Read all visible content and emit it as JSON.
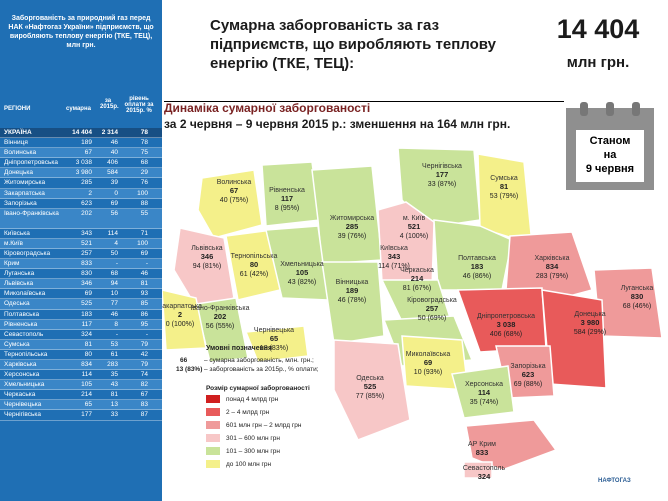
{
  "sidebar": {
    "title": "Заборгованість за природний газ перед НАК «Нафтогаз України» підприємств, що виробляють теплову енергію (ТКЕ, ТЕЦ), млн грн.",
    "headers": {
      "region": "РЕГІОНИ",
      "sum": "сумарна",
      "y2015": "за 2015р.",
      "pct": "рівень оплати за 2015р. %"
    },
    "total": {
      "name": "УКРАЇНА",
      "sum": "14 404",
      "y2015": "2 314",
      "pct": "78"
    },
    "rows": [
      {
        "name": "Вінниця",
        "sum": "189",
        "y2015": "46",
        "pct": "78"
      },
      {
        "name": "Волинська",
        "sum": "67",
        "y2015": "40",
        "pct": "75"
      },
      {
        "name": "Дніпропетровська",
        "sum": "3 038",
        "y2015": "406",
        "pct": "68"
      },
      {
        "name": "Донецька",
        "sum": "3 980",
        "y2015": "584",
        "pct": "29"
      },
      {
        "name": "Житомирська",
        "sum": "285",
        "y2015": "39",
        "pct": "76"
      },
      {
        "name": "Закарпатська",
        "sum": "2",
        "y2015": "0",
        "pct": "100"
      },
      {
        "name": "Запорізька",
        "sum": "623",
        "y2015": "69",
        "pct": "88"
      },
      {
        "name": "Івано-Франківська",
        "sum": "202",
        "y2015": "56",
        "pct": "55"
      },
      {
        "name": "Київська",
        "sum": "343",
        "y2015": "114",
        "pct": "71"
      },
      {
        "name": "м.Київ",
        "sum": "521",
        "y2015": "4",
        "pct": "100"
      },
      {
        "name": "Кіровоградська",
        "sum": "257",
        "y2015": "50",
        "pct": "69"
      },
      {
        "name": "Крим",
        "sum": "833",
        "y2015": "-",
        "pct": "-"
      },
      {
        "name": "Луганська",
        "sum": "830",
        "y2015": "68",
        "pct": "46"
      },
      {
        "name": "Львівська",
        "sum": "346",
        "y2015": "94",
        "pct": "81"
      },
      {
        "name": "Миколаївська",
        "sum": "69",
        "y2015": "10",
        "pct": "93"
      },
      {
        "name": "Одеська",
        "sum": "525",
        "y2015": "77",
        "pct": "85"
      },
      {
        "name": "Полтавська",
        "sum": "183",
        "y2015": "46",
        "pct": "86"
      },
      {
        "name": "Рівненська",
        "sum": "117",
        "y2015": "8",
        "pct": "95"
      },
      {
        "name": "Севастополь",
        "sum": "324",
        "y2015": "-",
        "pct": "-"
      },
      {
        "name": "Сумська",
        "sum": "81",
        "y2015": "53",
        "pct": "79"
      },
      {
        "name": "Тернопільська",
        "sum": "80",
        "y2015": "61",
        "pct": "42"
      },
      {
        "name": "Харківська",
        "sum": "834",
        "y2015": "283",
        "pct": "79"
      },
      {
        "name": "Херсонська",
        "sum": "114",
        "y2015": "35",
        "pct": "74"
      },
      {
        "name": "Хмельницька",
        "sum": "105",
        "y2015": "43",
        "pct": "82"
      },
      {
        "name": "Черкаська",
        "sum": "214",
        "y2015": "81",
        "pct": "67"
      },
      {
        "name": "Чернівецька",
        "sum": "65",
        "y2015": "13",
        "pct": "83"
      },
      {
        "name": "Чернігівська",
        "sum": "177",
        "y2015": "33",
        "pct": "87"
      }
    ]
  },
  "header": {
    "title": "Сумарна заборгованість за газ підприємств, що виробляють теплову енергію (ТКЕ, ТЕЦ):",
    "total": "14 404",
    "unit": "млн грн."
  },
  "subtitle": {
    "line1": "Динаміка сумарної заборгованості",
    "line2": "за 2 червня – 9 червня 2015 р.: зменшення на 164 млн грн."
  },
  "calendar": {
    "text1": "Станом",
    "text2": "на",
    "text3": "9 червня"
  },
  "map": {
    "regions": [
      {
        "name": "Волинська",
        "sum": "67",
        "sub": "40 (75%)"
      },
      {
        "name": "Рівненська",
        "sum": "117",
        "sub": "8 (95%)"
      },
      {
        "name": "Житомирська",
        "sum": "285",
        "sub": "39 (76%)"
      },
      {
        "name": "м. Київ",
        "sum": "521",
        "sub": "4 (100%)"
      },
      {
        "name": "Чернігівська",
        "sum": "177",
        "sub": "33 (87%)"
      },
      {
        "name": "Сумська",
        "sum": "81",
        "sub": "53 (79%)"
      },
      {
        "name": "Львівська",
        "sum": "346",
        "sub": "94 (81%)"
      },
      {
        "name": "Тернопільська",
        "sum": "80",
        "sub": "61 (42%)"
      },
      {
        "name": "Хмельницька",
        "sum": "105",
        "sub": "43 (82%)"
      },
      {
        "name": "Київська",
        "sum": "343",
        "sub": "114 (71%)"
      },
      {
        "name": "Полтавська",
        "sum": "183",
        "sub": "46 (86%)"
      },
      {
        "name": "Харківська",
        "sum": "834",
        "sub": "283 (79%)"
      },
      {
        "name": "Луганська",
        "sum": "830",
        "sub": "68 (46%)"
      },
      {
        "name": "Черкаська",
        "sum": "214",
        "sub": "81 (67%)"
      },
      {
        "name": "Вінницька",
        "sum": "189",
        "sub": "46 (78%)"
      },
      {
        "name": "Івано-Франківська",
        "sum": "202",
        "sub": "56 (55%)"
      },
      {
        "name": "Закарпатська",
        "sum": "2",
        "sub": "0 (100%)"
      },
      {
        "name": "Чернівецька",
        "sum": "65",
        "sub": "13 (83%)"
      },
      {
        "name": "Кіровоградська",
        "sum": "257",
        "sub": "50 (69%)"
      },
      {
        "name": "Дніпропетровська",
        "sum": "3 038",
        "sub": "406 (68%)"
      },
      {
        "name": "Донецька",
        "sum": "3 980",
        "sub": "584 (29%)"
      },
      {
        "name": "Запорізька",
        "sum": "623",
        "sub": "69 (88%)"
      },
      {
        "name": "Миколаївська",
        "sum": "69",
        "sub": "10 (93%)"
      },
      {
        "name": "Одеська",
        "sum": "525",
        "sub": "77 (85%)"
      },
      {
        "name": "Херсонська",
        "sum": "114",
        "sub": "35 (74%)"
      },
      {
        "name": "АР Крим",
        "sum": "833",
        "sub": ""
      },
      {
        "name": "Севастополь",
        "sum": "324",
        "sub": ""
      }
    ],
    "colors": {
      "lt100": "#f4f08a",
      "r101_300": "#c9e39a",
      "r301_600": "#f7c7c7",
      "r601_2000": "#ef9a9a",
      "r2_4": "#e85a5a",
      "gt4": "#d01f1f",
      "sea": "#ffffff",
      "neighbors": "#dcdcdc"
    }
  },
  "legend": {
    "title": "Умовні позначення",
    "ex1": "66",
    "ex2": "13 (83%)",
    "desc1": "– сумарна заборгованість, млн. грн.;",
    "desc2": "– заборгованість за 2015р., % оплати;",
    "size_title": "Розмір сумарної заборгованості",
    "items": [
      {
        "label": "понад 4 млрд грн",
        "color": "#d01f1f"
      },
      {
        "label": "2 – 4 млрд грн",
        "color": "#e85a5a"
      },
      {
        "label": "601 млн грн – 2 млрд грн",
        "color": "#ef9a9a"
      },
      {
        "label": "301 – 600 млн грн",
        "color": "#f7c7c7"
      },
      {
        "label": "101 – 300 млн грн",
        "color": "#c9e39a"
      },
      {
        "label": "до 100 млн грн",
        "color": "#f4f08a"
      }
    ]
  },
  "logo": {
    "text": "НАФТОГАЗ"
  }
}
